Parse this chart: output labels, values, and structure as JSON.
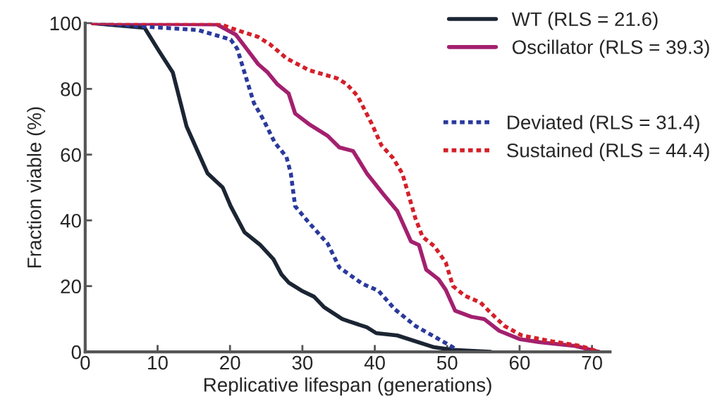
{
  "chart_data": {
    "type": "line",
    "xlabel": "Replicative lifespan (generations)",
    "ylabel": "Fraction viable (%)",
    "xlim": [
      0,
      72.5
    ],
    "xticks": [
      0,
      10,
      20,
      30,
      40,
      50,
      60,
      70
    ],
    "ylim": [
      0,
      100
    ],
    "yticks": [
      0,
      20,
      40,
      60,
      80,
      100
    ],
    "grid": false,
    "legend": "top right",
    "marker": "none",
    "series": [
      {
        "name": "WT (RLS = 21.6)",
        "color": "#1c2533",
        "line_style": "solid",
        "x": [
          1,
          8.2,
          10.2,
          12.1,
          14,
          15.6,
          16.9,
          19,
          20.1,
          22,
          24.2,
          26,
          27.1,
          28.1,
          29.9,
          31.6,
          33,
          35.5,
          36.4,
          38.9,
          40.2,
          43.1,
          48.2,
          50.8,
          56
        ],
        "values": [
          100,
          98.6,
          91.5,
          85,
          68.6,
          60.7,
          54.3,
          50,
          44.3,
          36.4,
          32.5,
          28.2,
          23.6,
          21.1,
          18.6,
          16.8,
          13.6,
          10,
          9.3,
          7.5,
          5.7,
          5,
          1.4,
          0.6,
          0
        ]
      },
      {
        "name": "Oscillator (RLS = 39.3)",
        "color": "#a3206f",
        "line_style": "solid",
        "x": [
          1,
          18.2,
          20.8,
          22.3,
          23.9,
          25.2,
          26.5,
          28.1,
          29,
          30.9,
          33.5,
          35.1,
          37,
          38.9,
          41.2,
          43.1,
          45,
          46.1,
          47.1,
          48.8,
          49.8,
          51.1,
          53.3,
          55.1,
          57.2,
          60,
          62.9,
          67.7,
          71
        ],
        "values": [
          100,
          99.6,
          96.5,
          92.2,
          87.5,
          85,
          81.5,
          78.6,
          72.5,
          69.3,
          65.7,
          62.2,
          61.1,
          54.3,
          47.9,
          42.9,
          33.6,
          32.5,
          25,
          22.1,
          18.9,
          12.5,
          10.7,
          10,
          6.4,
          3.9,
          2.9,
          1.8,
          0
        ]
      },
      {
        "name": "Deviated (RLS = 31.4)",
        "color": "#2b3a9c",
        "line_style": "dotted",
        "x": [
          1,
          15.6,
          20.1,
          21,
          22,
          23.3,
          24.6,
          26.2,
          27.8,
          28.4,
          29,
          30.9,
          33.5,
          35.1,
          38.3,
          40.5,
          42.8,
          45.6,
          48.5,
          50.8,
          51.4
        ],
        "values": [
          100,
          97.9,
          95,
          92.2,
          85,
          75.7,
          70.7,
          63.6,
          59.3,
          54.3,
          44.3,
          39.3,
          32.9,
          25.7,
          20.7,
          18.6,
          12.9,
          7.9,
          4.3,
          1.4,
          0
        ]
      },
      {
        "name": "Sustained (RLS = 44.4)",
        "color": "#d4202a",
        "line_style": "dotted",
        "x": [
          1,
          18.2,
          20.8,
          23.9,
          25.5,
          27.8,
          30.9,
          34.8,
          36.1,
          37.6,
          39.6,
          40.9,
          42.5,
          43.8,
          45.6,
          46.6,
          48.2,
          49.8,
          50.8,
          52.4,
          54.6,
          55.9,
          57.9,
          60.3,
          64.5,
          68.4,
          71
        ],
        "values": [
          100,
          100,
          98,
          95.8,
          93.6,
          89.3,
          85.7,
          83.2,
          81.5,
          77.9,
          69.3,
          62.9,
          59,
          54.3,
          40.7,
          35,
          32.2,
          27.2,
          20,
          17.1,
          15,
          12.1,
          7.9,
          5,
          3.2,
          1.8,
          0
        ]
      }
    ]
  }
}
